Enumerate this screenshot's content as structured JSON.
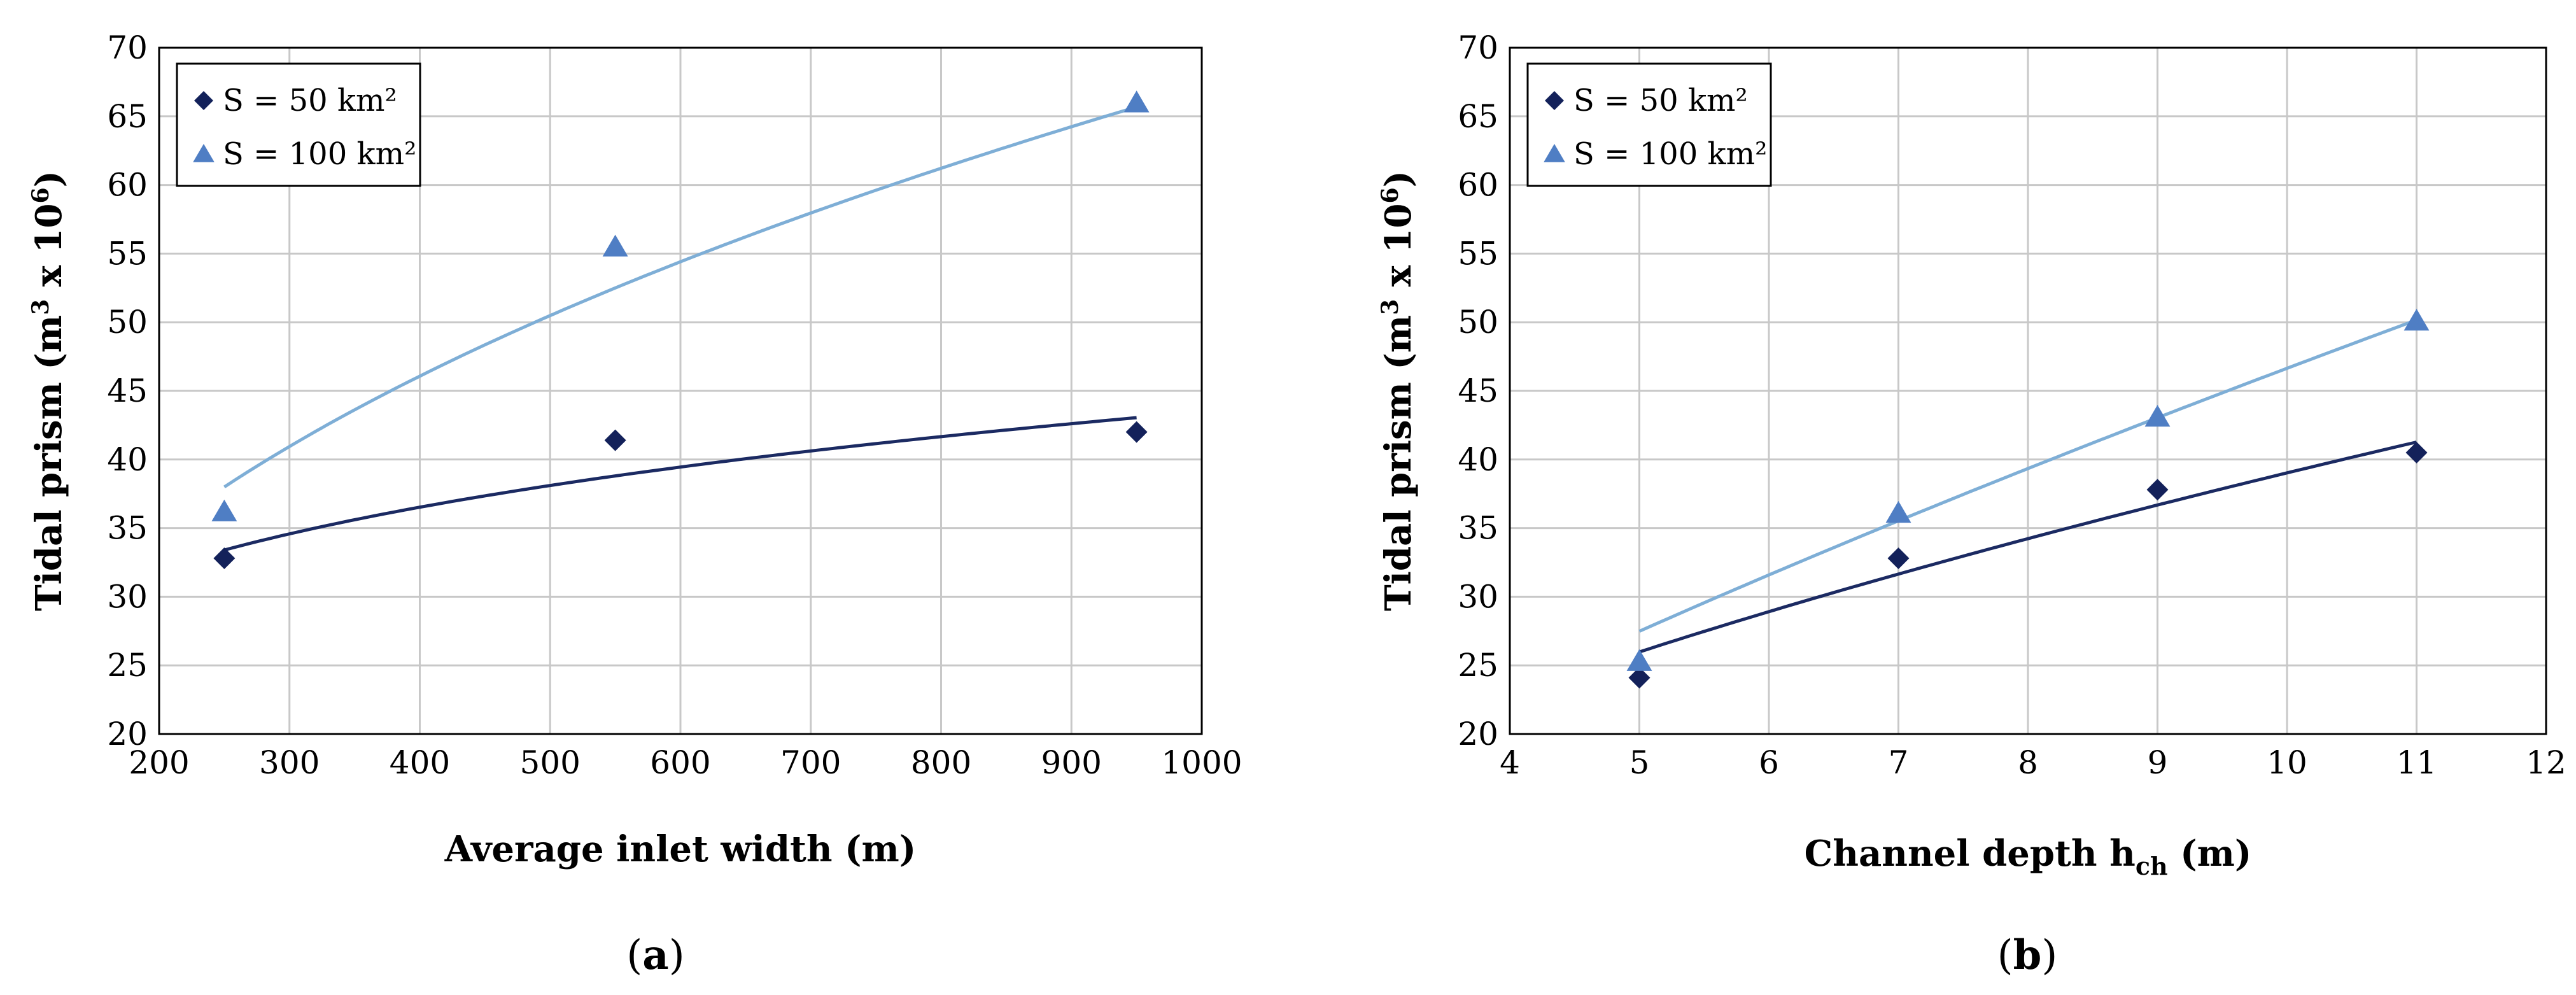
{
  "colors": {
    "s50": "#13215a",
    "s100": "#4f7ec4",
    "s50_trend": "#1b2a62",
    "s100_trend": "#7eaed6",
    "grid": "#c8c8c8"
  },
  "chart_data": [
    {
      "type": "scatter",
      "panel": "(a)",
      "caption_open": "(",
      "caption_letter": "a",
      "caption_close": ")",
      "xlabel": "Average inlet width (m)",
      "ylabel_main": "Tidal prism (m",
      "ylabel_sup1": "3",
      "ylabel_mid": " x 10",
      "ylabel_sup2": "6",
      "ylabel_end": ")",
      "xlim": [
        200,
        1000
      ],
      "ylim": [
        20,
        70
      ],
      "xticks": [
        200,
        300,
        400,
        500,
        600,
        700,
        800,
        900,
        1000
      ],
      "yticks": [
        20,
        25,
        30,
        35,
        40,
        45,
        50,
        55,
        60,
        65,
        70
      ],
      "legend_position": "top-left",
      "series": [
        {
          "name": "S = 50 km²",
          "marker": "diamond",
          "x": [
            250,
            550,
            950
          ],
          "y": [
            32.8,
            41.4,
            42.0
          ],
          "trend": {
            "form": "power",
            "a": 11.7,
            "b": 0.19
          }
        },
        {
          "name": "S = 100 km²",
          "marker": "triangle",
          "x": [
            250,
            550,
            950
          ],
          "y": [
            36.2,
            55.5,
            66.0
          ],
          "trend": {
            "form": "power",
            "a": 3.95,
            "b": 0.41
          }
        }
      ]
    },
    {
      "type": "scatter",
      "panel": "(b)",
      "caption_open": "(",
      "caption_letter": "b",
      "caption_close": ")",
      "xlabel_main": "Channel depth h",
      "xlabel_sub": "ch",
      "xlabel_end": " (m)",
      "ylabel_main": "Tidal prism (m",
      "ylabel_sup1": "3",
      "ylabel_mid": " x 10",
      "ylabel_sup2": "6",
      "ylabel_end": ")",
      "xlim": [
        4,
        12
      ],
      "ylim": [
        20,
        70
      ],
      "xticks": [
        4,
        5,
        6,
        7,
        8,
        9,
        10,
        11,
        12
      ],
      "yticks": [
        20,
        25,
        30,
        35,
        40,
        45,
        50,
        55,
        60,
        65,
        70
      ],
      "legend_position": "top-left",
      "series": [
        {
          "name": "S = 50 km²",
          "marker": "diamond",
          "x": [
            5,
            7,
            9,
            11
          ],
          "y": [
            24.1,
            32.8,
            37.8,
            40.5
          ],
          "trend": {
            "form": "power",
            "a": 10.1,
            "b": 0.587
          }
        },
        {
          "name": "S = 100 km²",
          "marker": "triangle",
          "x": [
            5,
            7,
            9,
            11
          ],
          "y": [
            25.3,
            36.1,
            43.1,
            50.1
          ],
          "trend": {
            "form": "power",
            "a": 8.05,
            "b": 0.763
          }
        }
      ]
    }
  ]
}
